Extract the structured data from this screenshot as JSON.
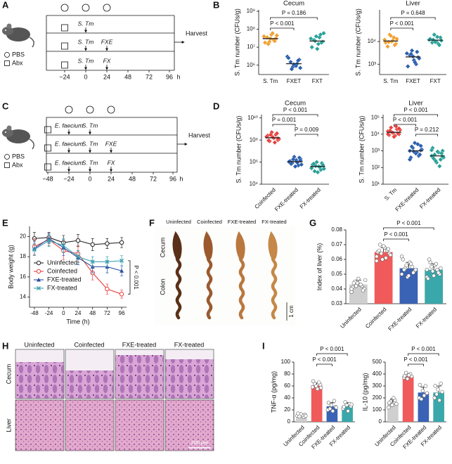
{
  "panel_labels": [
    "A",
    "B",
    "C",
    "D",
    "E",
    "F",
    "G",
    "H",
    "I"
  ],
  "schematic_a": {
    "legend": [
      "PBS",
      "Abx"
    ],
    "rows": [
      [],
      [
        "S. Tm"
      ],
      [
        "S. Tm",
        "FXE"
      ],
      [
        "S. Tm",
        "FX"
      ]
    ],
    "timeline": [
      "−24",
      "0",
      "24",
      "48",
      "72",
      "96",
      "h"
    ],
    "end": "Harvest"
  },
  "schematic_c": {
    "legend": [
      "PBS",
      "Abx"
    ],
    "rows": [
      [],
      [
        "E. faecium",
        "S. Tm"
      ],
      [
        "E. faecium",
        "S. Tm",
        "FXE"
      ],
      [
        "E. faecium",
        "S. Tm",
        "FX"
      ]
    ],
    "timeline": [
      "−48",
      "−24",
      "0",
      "24",
      "48",
      "72",
      "96",
      "h"
    ],
    "end": "Harvest"
  },
  "image_f": {
    "columns": [
      "Uninfected",
      "Coinfected",
      "FXE-treated",
      "FX-treated"
    ],
    "rows": [
      "Cecum",
      "Colon"
    ],
    "scale": "1 cm"
  },
  "image_h": {
    "columns": [
      "Uninfected",
      "Coinfected",
      "FXE-treated",
      "FX-treated"
    ],
    "rows": [
      "Cecum",
      "Liver"
    ],
    "scale": "200 μm"
  },
  "chart_data": [
    {
      "type": "strip",
      "title": "Cecum",
      "y_label": "S. Tm number (CFUs/g)",
      "log_y": true,
      "ylim": [
        300000,
        1200000000
      ],
      "yticks": [
        {
          "value": 1000000,
          "label": "10⁶"
        },
        {
          "value": 10000000,
          "label": "10⁷"
        },
        {
          "value": 100000000,
          "label": "10⁸"
        },
        {
          "value": 1000000000,
          "label": "10⁹"
        }
      ],
      "categories": [
        "S. Tm",
        "FXET",
        "FXT"
      ],
      "colors": [
        "#f0a030",
        "#2b5fad",
        "#2aa198"
      ],
      "points": [
        [
          40000000,
          30000000,
          25000000,
          50000000,
          20000000,
          35000000,
          18000000,
          45000000,
          22000000,
          60000000,
          30000000,
          15000000
        ],
        [
          3000000,
          2000000,
          1200000,
          1000000,
          800000,
          1500000,
          2500000,
          700000,
          1800000,
          900000,
          1100000,
          600000
        ],
        [
          30000000,
          20000000,
          50000000,
          15000000,
          40000000,
          25000000,
          10000000,
          60000000,
          18000000,
          35000000,
          8000000,
          22000000
        ]
      ],
      "medians": [
        30000000,
        1200000,
        22000000
      ],
      "annotations": [
        {
          "text": "P = 0.186",
          "from": "S. Tm",
          "to": "FXT"
        },
        {
          "text": "P < 0.001",
          "from": "S. Tm",
          "to": "FXET"
        }
      ]
    },
    {
      "type": "strip",
      "title": "Liver",
      "y_label": "S. Tm number (CFUs/g)",
      "log_y": true,
      "ylim": [
        350,
        250000
      ],
      "yticks": [
        {
          "value": 1000,
          "label": "10³"
        },
        {
          "value": 10000,
          "label": "10⁴"
        }
      ],
      "categories": [
        "S. Tm",
        "FXET",
        "FXT"
      ],
      "colors": [
        "#f0a030",
        "#2b5fad",
        "#2aa198"
      ],
      "points": [
        [
          12000,
          8000,
          15000,
          10000,
          20000,
          6000,
          9000,
          13000,
          7000,
          11000,
          18000,
          9500
        ],
        [
          3000,
          2000,
          1000,
          1500,
          4000,
          2500,
          800,
          1800,
          3500,
          1200,
          2200,
          2800
        ],
        [
          12000,
          15000,
          8000,
          10000,
          20000,
          9000,
          13000,
          11000,
          7000,
          16000,
          9500,
          12000
        ]
      ],
      "medians": [
        10500,
        2100,
        11500
      ],
      "annotations": [
        {
          "text": "P = 0.648",
          "from": "S. Tm",
          "to": "FXT"
        },
        {
          "text": "P < 0.001",
          "from": "S. Tm",
          "to": "FXET"
        }
      ]
    },
    {
      "type": "strip",
      "title": "Cecum",
      "y_label": "S. Tm number (CFUs/g)",
      "log_y": true,
      "ylim": [
        10000,
        20000000000
      ],
      "yticks": [
        {
          "value": 10000,
          "label": "10⁴"
        },
        {
          "value": 1000000,
          "label": "10⁶"
        },
        {
          "value": 100000000,
          "label": "10⁸"
        },
        {
          "value": 10000000000,
          "label": "10¹⁰"
        }
      ],
      "categories": [
        "Coinfected",
        "FXE-treated",
        "FX-treated"
      ],
      "colors": [
        "#e8413e",
        "#2b5fad",
        "#2aa198"
      ],
      "points": [
        [
          200000000,
          100000000,
          300000000,
          150000000,
          500000000,
          80000000,
          250000000,
          120000000,
          400000000,
          60000000,
          180000000,
          300000000,
          90000000,
          200000000,
          140000000
        ],
        [
          1000000,
          2000000,
          500000,
          1500000,
          3000000,
          800000,
          1200000,
          600000,
          2500000,
          900000,
          400000,
          1800000,
          700000,
          1100000,
          1400000
        ],
        [
          300000,
          500000,
          200000,
          400000,
          1000000,
          150000,
          600000,
          250000,
          800000,
          350000,
          120000,
          450000,
          700000,
          280000,
          550000
        ]
      ],
      "medians": [
        160000000,
        1100000,
        400000
      ],
      "annotations": [
        {
          "text": "P < 0.001",
          "from": "Coinfected",
          "to": "FX-treated"
        },
        {
          "text": "P = 0.001",
          "from": "Coinfected",
          "to": "FXE-treated"
        },
        {
          "text": "P = 0.009",
          "from": "FXE-treated",
          "to": "FX-treated"
        }
      ]
    },
    {
      "type": "strip",
      "title": "Liver",
      "y_label": "S. Tm number (CFUs/g)",
      "log_y": true,
      "ylim": [
        10,
        150000
      ],
      "yticks": [
        {
          "value": 10,
          "label": "10¹"
        },
        {
          "value": 100,
          "label": "10²"
        },
        {
          "value": 1000,
          "label": "10³"
        },
        {
          "value": 10000,
          "label": "10⁴"
        },
        {
          "value": 100000,
          "label": "10⁵"
        }
      ],
      "categories": [
        "S. Tm",
        "FXE-treated",
        "FX-treated"
      ],
      "colors": [
        "#e8413e",
        "#2b5fad",
        "#2aa198"
      ],
      "points": [
        [
          15000,
          10000,
          20000,
          8000,
          12000,
          25000,
          9000,
          18000,
          11000,
          30000,
          7000,
          13000,
          16000,
          10000,
          22000
        ],
        [
          1000,
          2000,
          500,
          800,
          3000,
          1500,
          400,
          1200,
          600,
          2500,
          700,
          900,
          1800,
          300,
          1100
        ],
        [
          500,
          1000,
          300,
          800,
          200,
          600,
          1500,
          400,
          700,
          120,
          900,
          250,
          350,
          1100,
          450
        ]
      ],
      "medians": [
        13000,
        1000,
        500
      ],
      "annotations": [
        {
          "text": "P < 0.001",
          "from": "S. Tm",
          "to": "FX-treated"
        },
        {
          "text": "P < 0.001",
          "from": "S. Tm",
          "to": "FXE-treated"
        },
        {
          "text": "P = 0.212",
          "from": "FXE-treated",
          "to": "FX-treated"
        }
      ]
    },
    {
      "type": "line",
      "x_label": "Time (h)",
      "y_label": "Body weight (g)",
      "x": [
        -48,
        -24,
        0,
        24,
        48,
        72,
        96
      ],
      "xlim": [
        -56,
        104
      ],
      "xticks": [
        -48,
        -24,
        0,
        24,
        48,
        72,
        96
      ],
      "ylim": [
        13,
        21
      ],
      "yticks": [
        14,
        16,
        18,
        20
      ],
      "series": [
        {
          "name": "Uninfected",
          "color": "#222222",
          "marker": "o",
          "values": [
            19.8,
            19.9,
            19.4,
            19.6,
            19.2,
            19.3,
            19.4
          ],
          "errors": [
            0.6,
            0.5,
            0.7,
            0.6,
            0.6,
            0.5,
            0.5
          ]
        },
        {
          "name": "Coinfected",
          "color": "#e8413e",
          "marker": "o",
          "values": [
            19.0,
            19.7,
            18.6,
            18.3,
            16.4,
            14.8,
            14.3
          ],
          "errors": [
            0.8,
            0.6,
            0.9,
            0.8,
            0.7,
            0.5,
            0.4
          ]
        },
        {
          "name": "FXE-treated",
          "color": "#2b4fa0",
          "marker": "^",
          "values": [
            18.8,
            19.8,
            18.9,
            17.9,
            17.0,
            17.0,
            16.6
          ],
          "errors": [
            0.7,
            0.5,
            0.8,
            0.7,
            0.6,
            0.6,
            0.5
          ]
        },
        {
          "name": "FX-treated",
          "color": "#3aa0b0",
          "marker": "x",
          "values": [
            18.7,
            19.6,
            19.1,
            18.0,
            17.5,
            17.5,
            17.6
          ],
          "errors": [
            0.6,
            0.6,
            0.7,
            0.6,
            0.5,
            0.5,
            0.5
          ]
        }
      ],
      "annotations": [
        {
          "text": "P < 0.001",
          "from": "FX-treated",
          "to": "Coinfected"
        }
      ]
    },
    {
      "type": "bar",
      "y_label": "Index of liver (%)",
      "ylim": [
        0.03,
        0.08
      ],
      "yticks": [
        0.03,
        0.04,
        0.05,
        0.06,
        0.07,
        0.08
      ],
      "categories": [
        "Uninfected",
        "Coinfected",
        "FXE-treated",
        "FX-treated"
      ],
      "colors": [
        "#cfcfcf",
        "#f05a5a",
        "#3a62b5",
        "#3aa8aa"
      ],
      "values": [
        0.043,
        0.065,
        0.054,
        0.053
      ],
      "errors": [
        0.003,
        0.003,
        0.004,
        0.004
      ],
      "points": [
        [
          0.038,
          0.04,
          0.042,
          0.043,
          0.044,
          0.045,
          0.041,
          0.046,
          0.039,
          0.043,
          0.047,
          0.042,
          0.044,
          0.04
        ],
        [
          0.062,
          0.064,
          0.066,
          0.068,
          0.06,
          0.07,
          0.065,
          0.063,
          0.067,
          0.061,
          0.069,
          0.064,
          0.066,
          0.059
        ],
        [
          0.05,
          0.052,
          0.055,
          0.058,
          0.048,
          0.054,
          0.06,
          0.053,
          0.051,
          0.057,
          0.049,
          0.056,
          0.053,
          0.062
        ],
        [
          0.048,
          0.05,
          0.053,
          0.056,
          0.052,
          0.058,
          0.047,
          0.054,
          0.051,
          0.057,
          0.049,
          0.055,
          0.06,
          0.053
        ]
      ],
      "annotations": [
        {
          "text": "P < 0.001",
          "from": "Coinfected",
          "to": "FX-treated"
        },
        {
          "text": "P < 0.001",
          "from": "Coinfected",
          "to": "FXE-treated"
        }
      ]
    },
    {
      "type": "bar",
      "y_label": "TNF-α (pg/mg)",
      "ylim": [
        0,
        100
      ],
      "yticks": [
        0,
        20,
        40,
        60,
        80,
        100
      ],
      "categories": [
        "Uninfected",
        "Coinfected",
        "FXE-treated",
        "FX-treated"
      ],
      "colors": [
        "#cfcfcf",
        "#f05a5a",
        "#3a62b5",
        "#3aa8aa"
      ],
      "values": [
        11,
        61,
        26,
        27
      ],
      "errors": [
        2,
        4,
        6,
        5
      ],
      "points": [
        [
          10,
          12,
          8,
          11,
          13,
          9,
          14,
          10
        ],
        [
          58,
          62,
          66,
          55,
          60,
          64,
          68,
          57
        ],
        [
          20,
          25,
          35,
          18,
          28,
          22,
          32,
          24
        ],
        [
          22,
          26,
          30,
          18,
          28,
          33,
          25,
          29
        ]
      ],
      "annotations": [
        {
          "text": "P < 0.001",
          "from": "Coinfected",
          "to": "FX-treated"
        },
        {
          "text": "P < 0.001",
          "from": "Coinfected",
          "to": "FXE-treated"
        }
      ]
    },
    {
      "type": "bar",
      "y_label": "IL-10 (pg/mg)",
      "ylim": [
        0,
        500
      ],
      "yticks": [
        0,
        100,
        200,
        300,
        400,
        500
      ],
      "categories": [
        "Uninfected",
        "Coinfected",
        "FXE-treated",
        "FX-treated"
      ],
      "colors": [
        "#cfcfcf",
        "#f05a5a",
        "#3a62b5",
        "#3aa8aa"
      ],
      "values": [
        160,
        385,
        245,
        245
      ],
      "errors": [
        30,
        18,
        45,
        55
      ],
      "points": [
        [
          120,
          150,
          180,
          200,
          140,
          170,
          160
        ],
        [
          370,
          380,
          400,
          390,
          360,
          410,
          385
        ],
        [
          200,
          240,
          300,
          220,
          260,
          190,
          310
        ],
        [
          200,
          250,
          320,
          180,
          270,
          230,
          300
        ]
      ],
      "annotations": [
        {
          "text": "P < 0.001",
          "from": "Coinfected",
          "to": "FX-treated"
        },
        {
          "text": "P < 0.001",
          "from": "Coinfected",
          "to": "FXE-treated"
        }
      ]
    }
  ]
}
